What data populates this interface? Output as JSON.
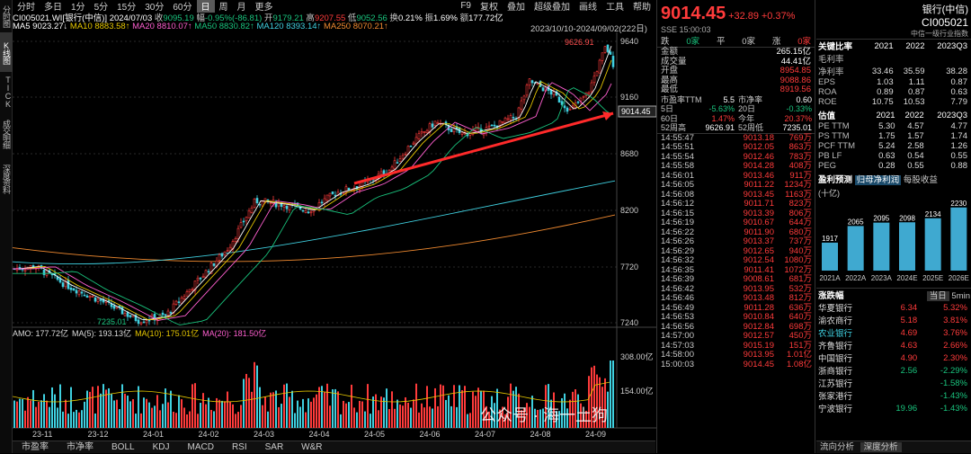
{
  "left_tabs": [
    "分时图",
    "K线图",
    "TICK",
    "成交明细",
    "深度资料"
  ],
  "timeframes": [
    "分时",
    "多日",
    "1分",
    "5分",
    "15分",
    "30分",
    "60分",
    "日",
    "周",
    "月",
    "更多"
  ],
  "selected_timeframe": "日",
  "top_right": {
    "f9": "F9",
    "menu1": "复权",
    "menu2": "叠加",
    "menu3": "超级叠加",
    "menu4": "画线",
    "menu5": "工具",
    "menu6": "帮助"
  },
  "ohlc": {
    "code": "CI005021.WI[银行(中信)]",
    "date": "2024/07/03",
    "close_label": "收",
    "close": "9095.19",
    "chg_label": "幅",
    "chg": "-0.95%(-86.81)",
    "open_label": "开",
    "open": "9179.21",
    "high_label": "高",
    "high": "9207.55",
    "low_label": "低",
    "low": "9052.56",
    "turnover_label": "换",
    "turnover": "0.21%",
    "amp_label": "振",
    "amp": "1.69%",
    "amount_label": "额",
    "amount": "177.72亿"
  },
  "ma": {
    "ma5": "MA5 9023.27↓",
    "ma10": "MA10 8883.58↑",
    "ma20": "MA20 8810.07↑",
    "ma50": "MA50 8830.82↑",
    "ma120": "MA120 8393.14↑",
    "ma250": "MA250 8070.21↑"
  },
  "range_text": "2023/10/10-2024/09/02(222日)",
  "price_labels": {
    "p1": "9640",
    "p2": "9160",
    "p3": "8680",
    "p4": "8200",
    "p5": "7720",
    "p6": "7240",
    "cur": "9014.45"
  },
  "annot": {
    "hi": "9626.91",
    "lo": "7235.01"
  },
  "amo": {
    "amo": "AMO: 177.72亿",
    "ma5": "MA(5): 193.13亿",
    "ma10": "MA(10): 175.01亿",
    "ma20": "MA(20): 181.50亿"
  },
  "vol_labels": {
    "v1": "308.00亿",
    "v2": "154.00亿"
  },
  "dates": [
    "23-11",
    "23-12",
    "24-01",
    "24-02",
    "24-03",
    "24-04",
    "24-05",
    "24-06",
    "24-07",
    "24-08",
    "24-09"
  ],
  "bottom_tabs": [
    "市盈率",
    "市净率",
    "BOLL",
    "KDJ",
    "MACD",
    "RSI",
    "SAR",
    "W&R"
  ],
  "quote": {
    "price": "9014.45",
    "change": "+32.89",
    "pct": "+0.37%",
    "name": "银行(中信)",
    "code": "CI005021",
    "sse": "SSE 15:00:03",
    "index_label": "中信一级行业指数"
  },
  "counts": {
    "down_label": "跌",
    "down": "0家",
    "flat_label": "平",
    "flat": "0家",
    "up_label": "涨",
    "up": "0家"
  },
  "stats": [
    [
      "金额",
      "265.15亿"
    ],
    [
      "成交量",
      "44.41亿"
    ],
    [
      "开盘",
      "8954.85"
    ],
    [
      "最高",
      "9088.86"
    ],
    [
      "最低",
      "8919.56"
    ]
  ],
  "stats2": [
    [
      "市盈率TTM",
      "5.5",
      "市净率",
      "0.60"
    ],
    [
      "5日",
      "-5.63%",
      "20日",
      "-0.33%"
    ],
    [
      "60日",
      "1.47%",
      "今年",
      "20.37%"
    ],
    [
      "52周高",
      "9626.91",
      "52周低",
      "7235.01"
    ]
  ],
  "ticks": [
    [
      "14:55:47",
      "9013.18",
      "769万"
    ],
    [
      "14:55:51",
      "9012.05",
      "863万"
    ],
    [
      "14:55:54",
      "9012.46",
      "783万"
    ],
    [
      "14:55:58",
      "9014.28",
      "408万"
    ],
    [
      "14:56:01",
      "9013.46",
      "911万"
    ],
    [
      "14:56:05",
      "9011.22",
      "1234万"
    ],
    [
      "14:56:08",
      "9013.45",
      "1163万"
    ],
    [
      "14:56:12",
      "9011.71",
      "823万"
    ],
    [
      "14:56:15",
      "9013.39",
      "806万"
    ],
    [
      "14:56:19",
      "9010.67",
      "644万"
    ],
    [
      "14:56:22",
      "9011.90",
      "680万"
    ],
    [
      "14:56:26",
      "9013.37",
      "737万"
    ],
    [
      "14:56:29",
      "9012.65",
      "940万"
    ],
    [
      "14:56:32",
      "9012.54",
      "1080万"
    ],
    [
      "14:56:35",
      "9011.41",
      "1072万"
    ],
    [
      "14:56:39",
      "9008.61",
      "681万"
    ],
    [
      "14:56:42",
      "9013.95",
      "532万"
    ],
    [
      "14:56:46",
      "9013.48",
      "812万"
    ],
    [
      "14:56:49",
      "9011.28",
      "636万"
    ],
    [
      "14:56:53",
      "9010.84",
      "640万"
    ],
    [
      "14:56:56",
      "9012.84",
      "698万"
    ],
    [
      "14:57:00",
      "9012.57",
      "450万"
    ],
    [
      "14:57:03",
      "9015.19",
      "151万"
    ],
    [
      "14:58:00",
      "9013.95",
      "1.01亿"
    ],
    [
      "15:00:03",
      "9014.45",
      "1.08亿"
    ]
  ],
  "ratios": {
    "title": "关键比率",
    "years": [
      "2021",
      "2022",
      "2023Q3"
    ],
    "rows": [
      [
        "毛利率",
        "",
        "",
        ""
      ],
      [
        "净利率",
        "33.46",
        "35.59",
        "38.28"
      ],
      [
        "EPS",
        "1.03",
        "1.11",
        "0.87"
      ],
      [
        "ROA",
        "0.89",
        "0.87",
        "0.63"
      ],
      [
        "ROE",
        "10.75",
        "10.53",
        "7.79"
      ]
    ]
  },
  "valuation": {
    "title": "估值",
    "years": [
      "2021",
      "2022",
      "2023Q3"
    ],
    "rows": [
      [
        "PE TTM",
        "5.30",
        "4.57",
        "4.77"
      ],
      [
        "PS TTM",
        "1.75",
        "1.57",
        "1.74"
      ],
      [
        "PCF TTM",
        "5.24",
        "2.58",
        "1.26"
      ],
      [
        "PB LF",
        "0.63",
        "0.54",
        "0.55"
      ],
      [
        "PEG",
        "0.28",
        "0.55",
        "0.88"
      ]
    ]
  },
  "forecast": {
    "title": "盈利预测",
    "unit": "(十亿)",
    "tab1": "归母净利润",
    "tab2": "每股收益"
  },
  "chart_data": {
    "type": "bar",
    "categories": [
      "2021A",
      "2022A",
      "2023A",
      "2024E",
      "2025E",
      "2026E"
    ],
    "values": [
      1917,
      2065,
      2095,
      2098,
      2134,
      2230
    ]
  },
  "rank": {
    "title": "涨跌幅",
    "t1": "当日",
    "t2": "5min",
    "rows": [
      [
        "华夏银行",
        "6.34",
        "5.32%"
      ],
      [
        "渝农商行",
        "5.18",
        "3.81%"
      ],
      [
        "农业银行",
        "4.69",
        "3.76%"
      ],
      [
        "齐鲁银行",
        "4.63",
        "2.66%"
      ],
      [
        "中国银行",
        "4.90",
        "2.30%"
      ],
      [
        "浙商银行",
        "2.56",
        "-2.29%"
      ],
      [
        "江苏银行",
        "",
        "-1.58%"
      ],
      [
        "张家港行",
        "",
        "-1.43%"
      ],
      [
        "宁波银行",
        "19.96",
        "-1.43%"
      ]
    ]
  },
  "bottom_right": {
    "t1": "流向分析",
    "t2": "深度分析"
  },
  "watermark": "公众号 · 海一土狗"
}
